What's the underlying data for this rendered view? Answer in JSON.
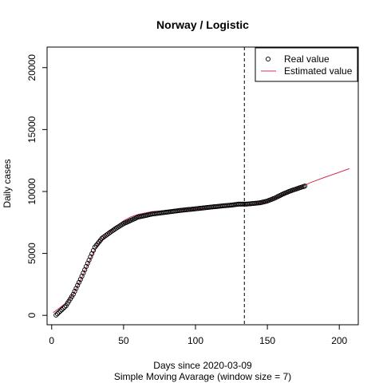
{
  "chart_data": {
    "type": "line",
    "title": "Norway / Logistic",
    "xlabel": "Days since 2020-03-09",
    "subtitle": "Simple Moving Avarage (window size = 7)",
    "ylabel": "Daily cases",
    "xlim": [
      -3.2,
      213.2
    ],
    "ylim": [
      -760,
      21660
    ],
    "xticks": [
      0,
      50,
      100,
      150,
      200
    ],
    "yticks": [
      0,
      5000,
      10000,
      15000,
      20000
    ],
    "vline_x": 134,
    "legend_position": "top-right",
    "legend": [
      {
        "label": "Real value",
        "marker": "circle"
      },
      {
        "label": "Estimated value",
        "marker": "line"
      }
    ],
    "series": [
      {
        "name": "Real value",
        "kind": "points",
        "color": "#000000",
        "x": [
          3,
          10,
          15,
          20,
          25,
          30,
          35,
          40,
          45,
          50,
          60,
          70,
          80,
          90,
          100,
          110,
          120,
          125,
          130,
          135,
          140,
          145,
          150,
          155,
          160,
          165,
          170,
          176
        ],
        "y": [
          20,
          780,
          1700,
          2900,
          4200,
          5500,
          6220,
          6650,
          7050,
          7400,
          7930,
          8180,
          8330,
          8480,
          8600,
          8730,
          8850,
          8900,
          8980,
          8980,
          9030,
          9090,
          9230,
          9460,
          9750,
          10000,
          10200,
          10440
        ]
      },
      {
        "name": "Estimated value",
        "kind": "line",
        "color": "#cc3355",
        "x": [
          1,
          5,
          10,
          15,
          20,
          25,
          30,
          35,
          40,
          45,
          50,
          55,
          60,
          70,
          80,
          90,
          100,
          110,
          120,
          130,
          140,
          150,
          160,
          170,
          180,
          190,
          200,
          207
        ],
        "y": [
          220,
          560,
          1000,
          1700,
          2800,
          4100,
          5300,
          6100,
          6700,
          7200,
          7650,
          7950,
          8150,
          8380,
          8460,
          8520,
          8590,
          8660,
          8740,
          8840,
          8970,
          9200,
          9650,
          10200,
          10720,
          11150,
          11550,
          11840
        ]
      }
    ]
  }
}
